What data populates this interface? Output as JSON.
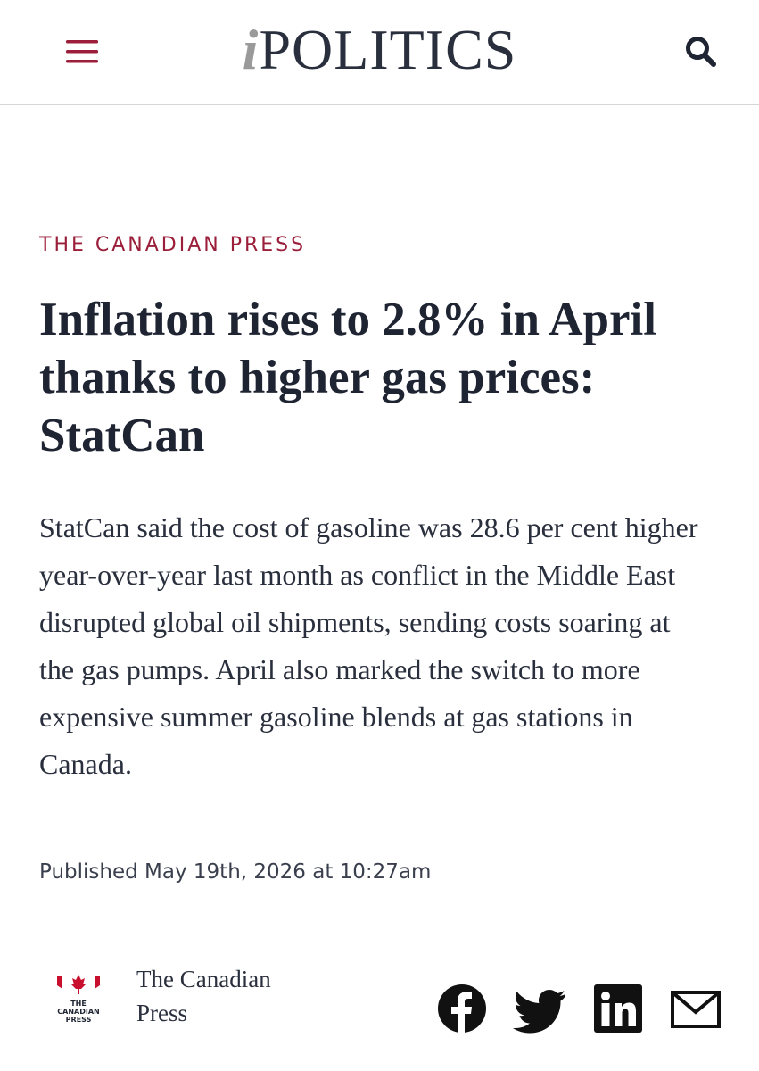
{
  "header": {
    "logo_prefix": "i",
    "logo_name": "POLITICS"
  },
  "article": {
    "category": "THE CANADIAN PRESS",
    "headline": "Inflation rises to 2.8% in April thanks to higher gas prices: StatCan",
    "summary": "StatCan said the cost of gasoline was 28.6 per cent higher year-over-year last month as conflict in the Middle East disrupted global oil shipments, sending costs soaring at the gas pumps. April also marked the switch to more expensive summer gasoline blends at gas stations in Canada.",
    "published": "Published May 19th, 2026 at 10:27am"
  },
  "author": {
    "logo_lines": [
      "THE",
      "CANADIAN",
      "PRESS"
    ],
    "name": "The Canadian Press"
  }
}
